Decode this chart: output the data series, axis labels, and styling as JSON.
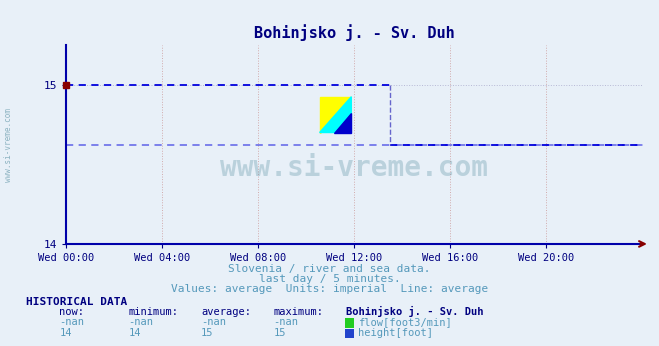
{
  "title": "Bohinjsko j. - Sv. Duh",
  "background_color": "#e8f0f8",
  "plot_bg_color": "#e8f0f8",
  "ylim": [
    14,
    15.25
  ],
  "yticks": [
    14,
    15
  ],
  "xlim_hours": [
    0,
    24
  ],
  "xtick_labels": [
    "Wed 00:00",
    "Wed 04:00",
    "Wed 08:00",
    "Wed 12:00",
    "Wed 16:00",
    "Wed 20:00"
  ],
  "xtick_positions": [
    0,
    4,
    8,
    12,
    16,
    20
  ],
  "height_line_y": 15,
  "height_line_color": "#0000dd",
  "height_step_x": 13.5,
  "height_step_y_before": 15,
  "height_step_y_after": 14.62,
  "avg_line_y": 14.62,
  "avg_line_color": "#0000dd",
  "vline_color": "#6666cc",
  "grid_color_v": "#cc9999",
  "grid_color_h": "#aaaacc",
  "axis_color": "#0000aa",
  "arrow_color": "#880000",
  "title_color": "#000080",
  "tick_color": "#000080",
  "label_color": "#5599bb",
  "watermark_text": "www.si-vreme.com",
  "watermark_color": "#6699aa",
  "watermark_alpha": 0.35,
  "subtitle1": "Slovenia / river and sea data.",
  "subtitle2": "last day / 5 minutes.",
  "subtitle3": "Values: average  Units: imperial  Line: average",
  "hist_title": "HISTORICAL DATA",
  "col_headers": [
    "now:",
    "minimum:",
    "average:",
    "maximum:",
    "Bohinjsko j. - Sv. Duh"
  ],
  "row1": [
    "-nan",
    "-nan",
    "-nan",
    "-nan",
    "flow[foot3/min]"
  ],
  "row2": [
    "14",
    "14",
    "15",
    "15",
    "height[foot]"
  ],
  "flow_color": "#22cc22",
  "height_color": "#2244cc",
  "font_family": "monospace"
}
